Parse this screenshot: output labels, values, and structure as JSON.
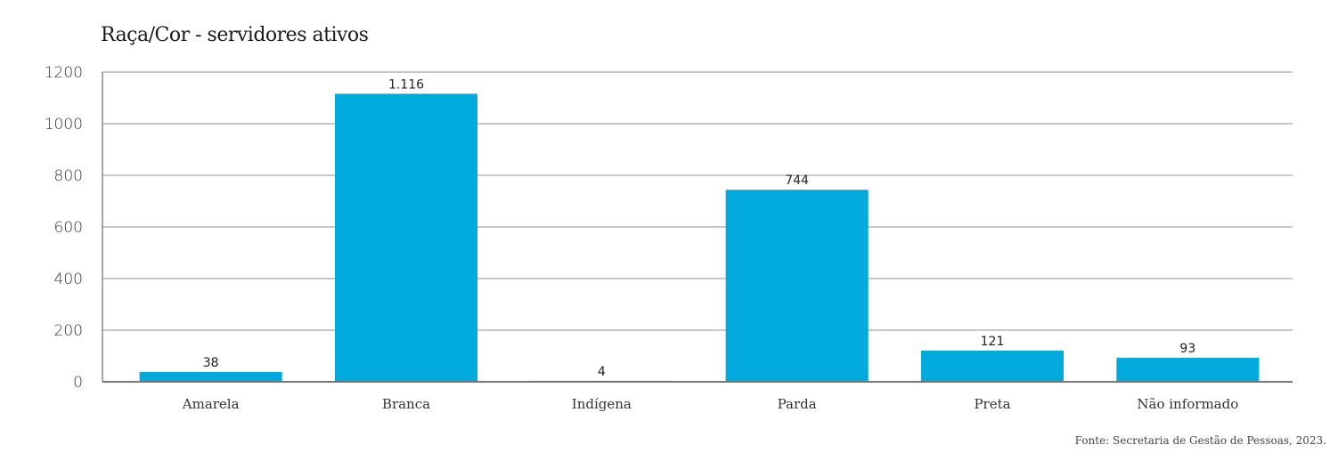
{
  "chart_data": {
    "type": "bar",
    "title": "Raça/Cor - servidores ativos",
    "categories": [
      "Amarela",
      "Branca",
      "Indígena",
      "Parda",
      "Preta",
      "Não informado"
    ],
    "values": [
      38,
      1116,
      4,
      744,
      121,
      93
    ],
    "data_labels": [
      "38",
      "1.116",
      "4",
      "744",
      "121",
      "93"
    ],
    "xlabel": "",
    "ylabel": "",
    "ylim": [
      0,
      1200
    ],
    "yticks": [
      "0",
      "200",
      "400",
      "600",
      "800",
      "1000",
      "1200"
    ],
    "grid": true,
    "legend": "none",
    "bar_color": "#00AADD",
    "source": "Fonte: Secretaria de Gestão de Pessoas, 2023."
  }
}
